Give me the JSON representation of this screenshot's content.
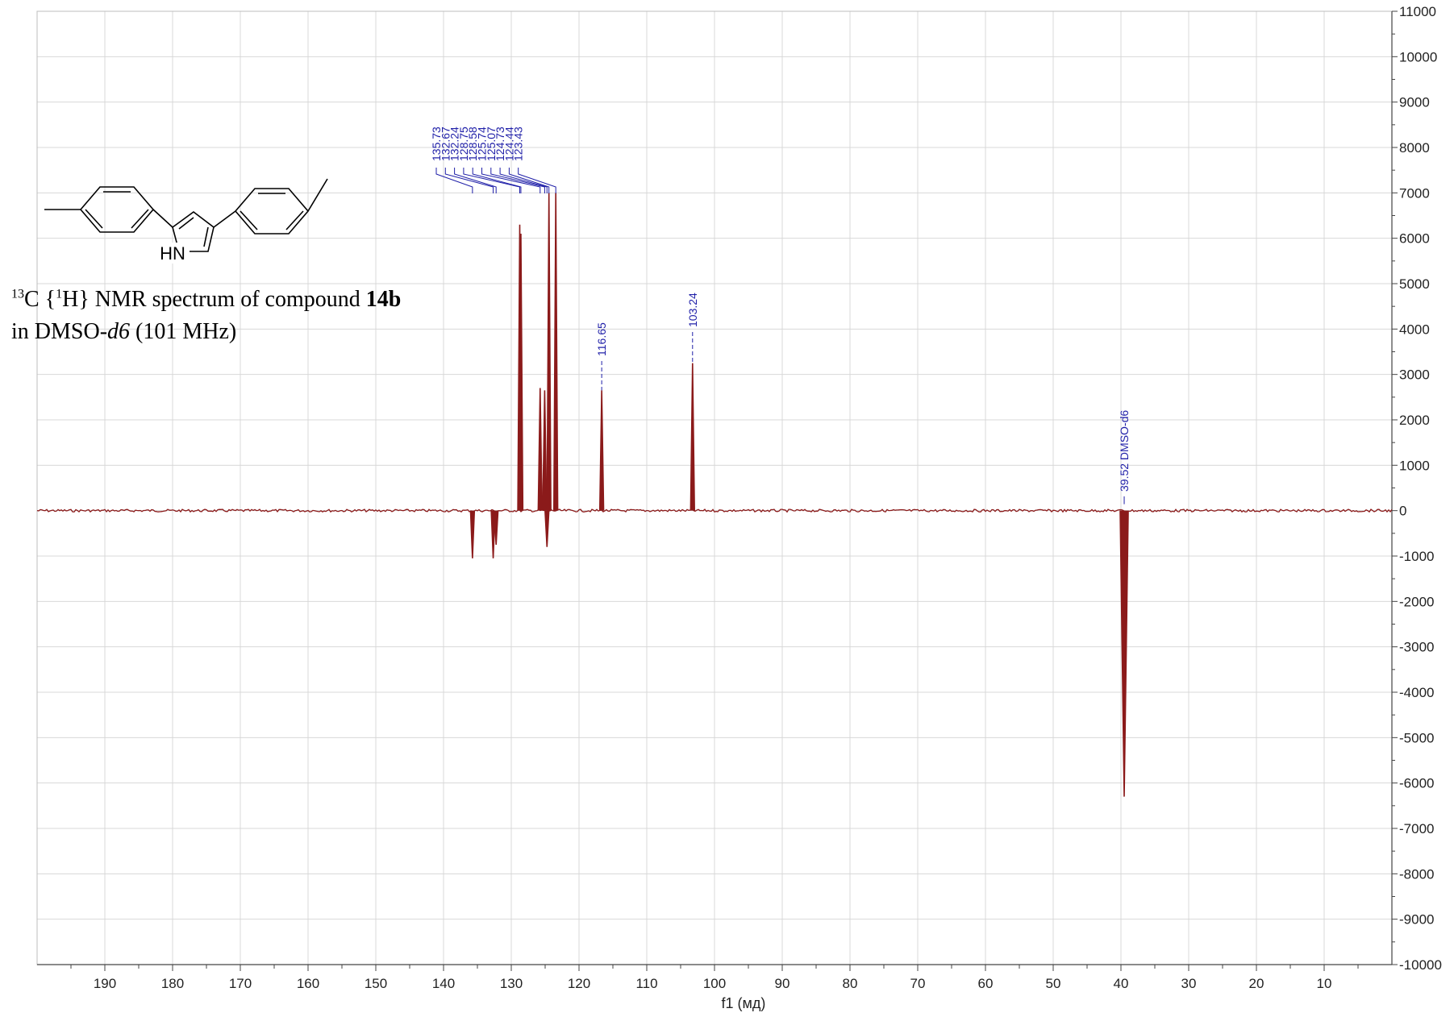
{
  "chart_data": {
    "type": "line",
    "xlabel": "f1 (мд)",
    "ylabel": "",
    "xlim": [
      200,
      0
    ],
    "ylim": [
      -10000,
      11000
    ],
    "x_ticks": [
      190,
      180,
      170,
      160,
      150,
      140,
      130,
      120,
      110,
      100,
      90,
      80,
      70,
      60,
      50,
      40,
      30,
      20,
      10
    ],
    "y_ticks": [
      11000,
      10000,
      9000,
      8000,
      7000,
      6000,
      5000,
      4000,
      3000,
      2000,
      1000,
      0,
      -1000,
      -2000,
      -3000,
      -4000,
      -5000,
      -6000,
      -7000,
      -8000,
      -9000,
      -10000
    ],
    "grid": true,
    "peak_labels": [
      "135.73",
      "132.67",
      "132.24",
      "128.75",
      "128.58",
      "125.74",
      "125.07",
      "124.73",
      "124.44",
      "123.43",
      "116.65",
      "103.24",
      "39.52 DMSO-d6"
    ],
    "peaks": [
      {
        "ppm": 135.73,
        "intensity": -1050
      },
      {
        "ppm": 132.67,
        "intensity": -1050
      },
      {
        "ppm": 132.24,
        "intensity": -750
      },
      {
        "ppm": 128.75,
        "intensity": 6300
      },
      {
        "ppm": 128.58,
        "intensity": 6100
      },
      {
        "ppm": 125.74,
        "intensity": 2700
      },
      {
        "ppm": 125.07,
        "intensity": 2650
      },
      {
        "ppm": 124.73,
        "intensity": -800
      },
      {
        "ppm": 124.44,
        "intensity": 7000
      },
      {
        "ppm": 123.43,
        "intensity": 7000
      },
      {
        "ppm": 116.65,
        "intensity": 2650
      },
      {
        "ppm": 103.24,
        "intensity": 3250
      },
      {
        "ppm": 39.52,
        "intensity": -6300
      }
    ]
  },
  "caption": {
    "line1_sup1": "13",
    "line1_a": "C {",
    "line1_sup2": "1",
    "line1_b": "H} NMR spectrum of compound ",
    "line1_bold": "14b",
    "line2_a": "in DMSO-",
    "line2_italic": "d6",
    "line2_b": " (101 MHz)"
  },
  "molecule": {
    "nh_label": "HN"
  },
  "colors": {
    "spectrum": "#8b1a1a",
    "peak_label": "#1f1fa8",
    "grid": "#d8d8d8"
  }
}
